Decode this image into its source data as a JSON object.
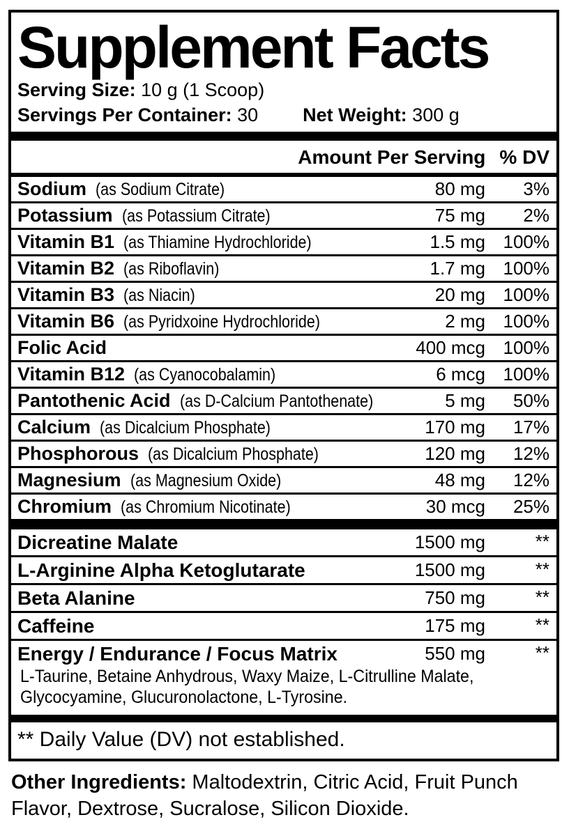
{
  "colors": {
    "text": "#000000",
    "background": "#ffffff"
  },
  "label": {
    "title": "Supplement Facts",
    "serving_size_label": "Serving Size:",
    "serving_size_value": "10 g (1 Scoop)",
    "servings_per_container_label": "Servings Per Container:",
    "servings_per_container_value": "30",
    "net_weight_label": "Net Weight:",
    "net_weight_value": "300 g",
    "header": {
      "amount": "Amount Per Serving",
      "dv": "% DV"
    },
    "nutrient_rows": [
      {
        "name": "Sodium",
        "detail": "(as Sodium Citrate)",
        "amount": "80 mg",
        "dv": "3%"
      },
      {
        "name": "Potassium",
        "detail": "(as Potassium Citrate)",
        "amount": "75 mg",
        "dv": "2%"
      },
      {
        "name": "Vitamin B1",
        "detail": "(as Thiamine Hydrochloride)",
        "amount": "1.5 mg",
        "dv": "100%"
      },
      {
        "name": "Vitamin B2",
        "detail": "(as Riboflavin)",
        "amount": "1.7 mg",
        "dv": "100%"
      },
      {
        "name": "Vitamin B3",
        "detail": "(as Niacin)",
        "amount": "20 mg",
        "dv": "100%"
      },
      {
        "name": "Vitamin B6",
        "detail": "(as Pyridxoine Hydrochloride)",
        "amount": "2 mg",
        "dv": "100%"
      },
      {
        "name": "Folic Acid",
        "detail": "",
        "amount": "400 mcg",
        "dv": "100%"
      },
      {
        "name": "Vitamin B12",
        "detail": "(as Cyanocobalamin)",
        "amount": "6 mcg",
        "dv": "100%"
      },
      {
        "name": "Pantothenic Acid",
        "detail": "(as D-Calcium Pantothenate)",
        "amount": "5 mg",
        "dv": "50%"
      },
      {
        "name": "Calcium",
        "detail": "(as Dicalcium Phosphate)",
        "amount": "170 mg",
        "dv": "17%"
      },
      {
        "name": "Phosphorous",
        "detail": "(as Dicalcium Phosphate)",
        "amount": "120 mg",
        "dv": "12%"
      },
      {
        "name": "Magnesium",
        "detail": "(as Magnesium Oxide)",
        "amount": "48 mg",
        "dv": "12%"
      },
      {
        "name": "Chromium",
        "detail": "(as Chromium Nicotinate)",
        "amount": "30 mcg",
        "dv": "25%"
      }
    ],
    "blend_rows": [
      {
        "name": "Dicreatine Malate",
        "amount": "1500 mg",
        "dv": "**"
      },
      {
        "name": "L-Arginine Alpha Ketoglutarate",
        "amount": "1500 mg",
        "dv": "**"
      },
      {
        "name": "Beta Alanine",
        "amount": "750 mg",
        "dv": "**"
      },
      {
        "name": "Caffeine",
        "amount": "175 mg",
        "dv": "**"
      },
      {
        "name": "Energy / Endurance / Focus Matrix",
        "amount": "550 mg",
        "dv": "**",
        "sub_ingredients": "L-Taurine, Betaine Anhydrous, Waxy Maize, L-Citrulline Malate, Glycocyamine, Glucuronolactone, L-Tyrosine."
      }
    ],
    "footnote": "** Daily Value (DV) not established.",
    "other_ingredients_label": "Other Ingredients:",
    "other_ingredients_value": "Maltodextrin, Citric Acid, Fruit Punch Flavor, Dextrose, Sucralose, Silicon Dioxide."
  }
}
